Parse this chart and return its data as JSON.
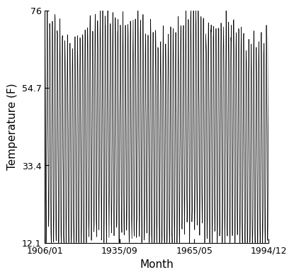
{
  "title": "",
  "xlabel": "Month",
  "ylabel": "Temperature (F)",
  "yticks": [
    12.1,
    33.4,
    54.7,
    76
  ],
  "xtick_labels": [
    "1906/01",
    "1935/09",
    "1965/05",
    "1994/12"
  ],
  "xtick_positions": [
    1906.0,
    1935.667,
    1965.333,
    1994.917
  ],
  "xlim": [
    1906.0,
    1994.917
  ],
  "ylim": [
    12.1,
    76.0
  ],
  "line_color": "#000000",
  "line_width": 0.5,
  "background_color": "#ffffff",
  "summer_peak": 72.0,
  "winter_low": 12.5,
  "seasonal_noise_std": 2.5,
  "inter_annual_amp": 3.0
}
